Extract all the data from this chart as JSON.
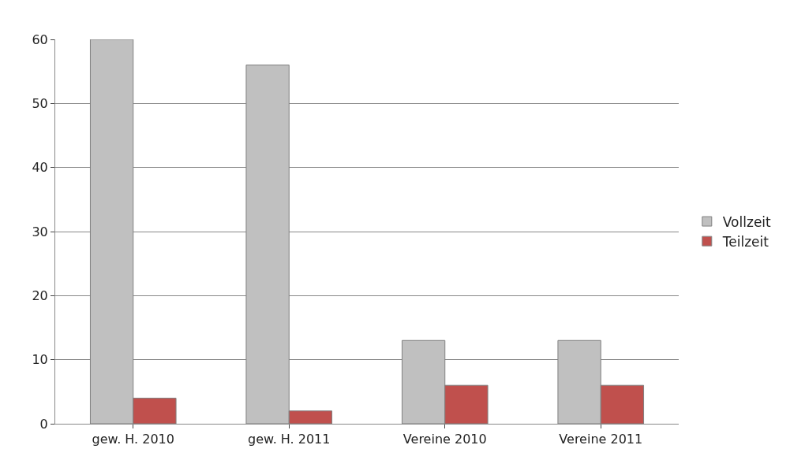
{
  "chart_data": {
    "type": "bar",
    "categories": [
      "gew. H. 2010",
      "gew. H. 2011",
      "Vereine 2010",
      "Vereine 2011"
    ],
    "series": [
      {
        "name": "Vollzeit",
        "color": "#c0c0c0",
        "values": [
          60,
          56,
          13,
          13
        ]
      },
      {
        "name": "Teilzeit",
        "color": "#c0504d",
        "values": [
          4,
          2,
          6,
          6
        ]
      }
    ],
    "ylim": [
      0,
      60
    ],
    "yticks": [
      0,
      10,
      20,
      30,
      40,
      50,
      60
    ],
    "grid": "y",
    "legend": "right"
  }
}
